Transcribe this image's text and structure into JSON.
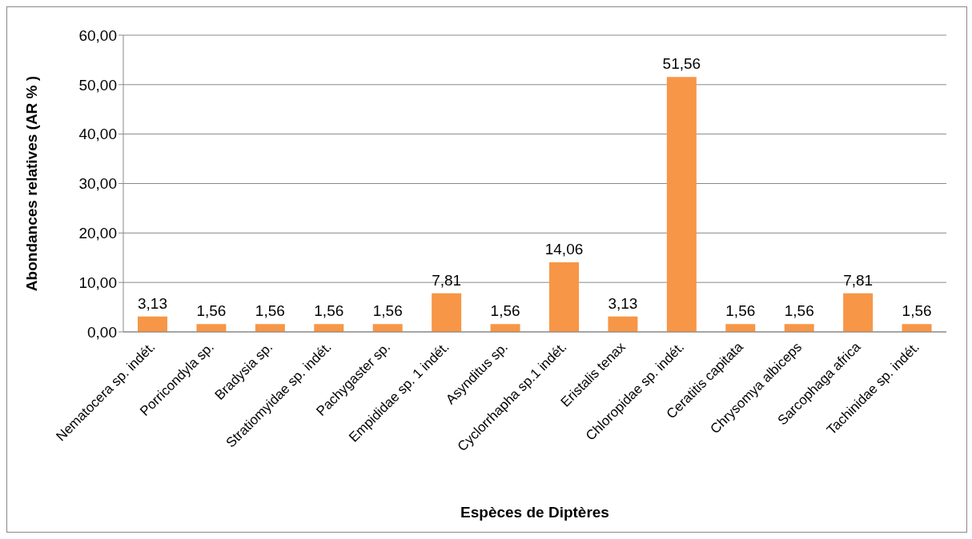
{
  "chart_data": {
    "type": "bar",
    "xlabel": "Espèces de Diptères",
    "ylabel": "Abondances relatives (AR % )",
    "categories": [
      "Nematocera sp. indét.",
      "Porricondyla sp.",
      "Bradysia sp.",
      "Stratiomyidae sp. indét.",
      "Pachygaster sp.",
      "Empididae sp. 1 indét.",
      "Asynditus sp.",
      "Cyclorrhapha sp.1 indét.",
      "Eristalis tenax",
      "Chloropidae sp. indét.",
      "Ceratitis capitata",
      "Chrysomya albiceps",
      "Sarcophaga africa",
      "Tachinidae sp. indét."
    ],
    "values": [
      3.13,
      1.56,
      1.56,
      1.56,
      1.56,
      7.81,
      1.56,
      14.06,
      3.13,
      51.56,
      1.56,
      1.56,
      7.81,
      1.56
    ],
    "value_labels": [
      "3,13",
      "1,56",
      "1,56",
      "1,56",
      "1,56",
      "7,81",
      "1,56",
      "14,06",
      "3,13",
      "51,56",
      "1,56",
      "1,56",
      "7,81",
      "1,56"
    ],
    "color": "#f79646",
    "ylim": [
      0,
      60
    ],
    "yticks": [
      {
        "value": 0,
        "label": "0,00"
      },
      {
        "value": 10,
        "label": "10,00"
      },
      {
        "value": 20,
        "label": "20,00"
      },
      {
        "value": 30,
        "label": "30,00"
      },
      {
        "value": 40,
        "label": "40,00"
      },
      {
        "value": 50,
        "label": "50,00"
      },
      {
        "value": 60,
        "label": "60,00"
      }
    ],
    "grid": "y",
    "legend": false
  }
}
